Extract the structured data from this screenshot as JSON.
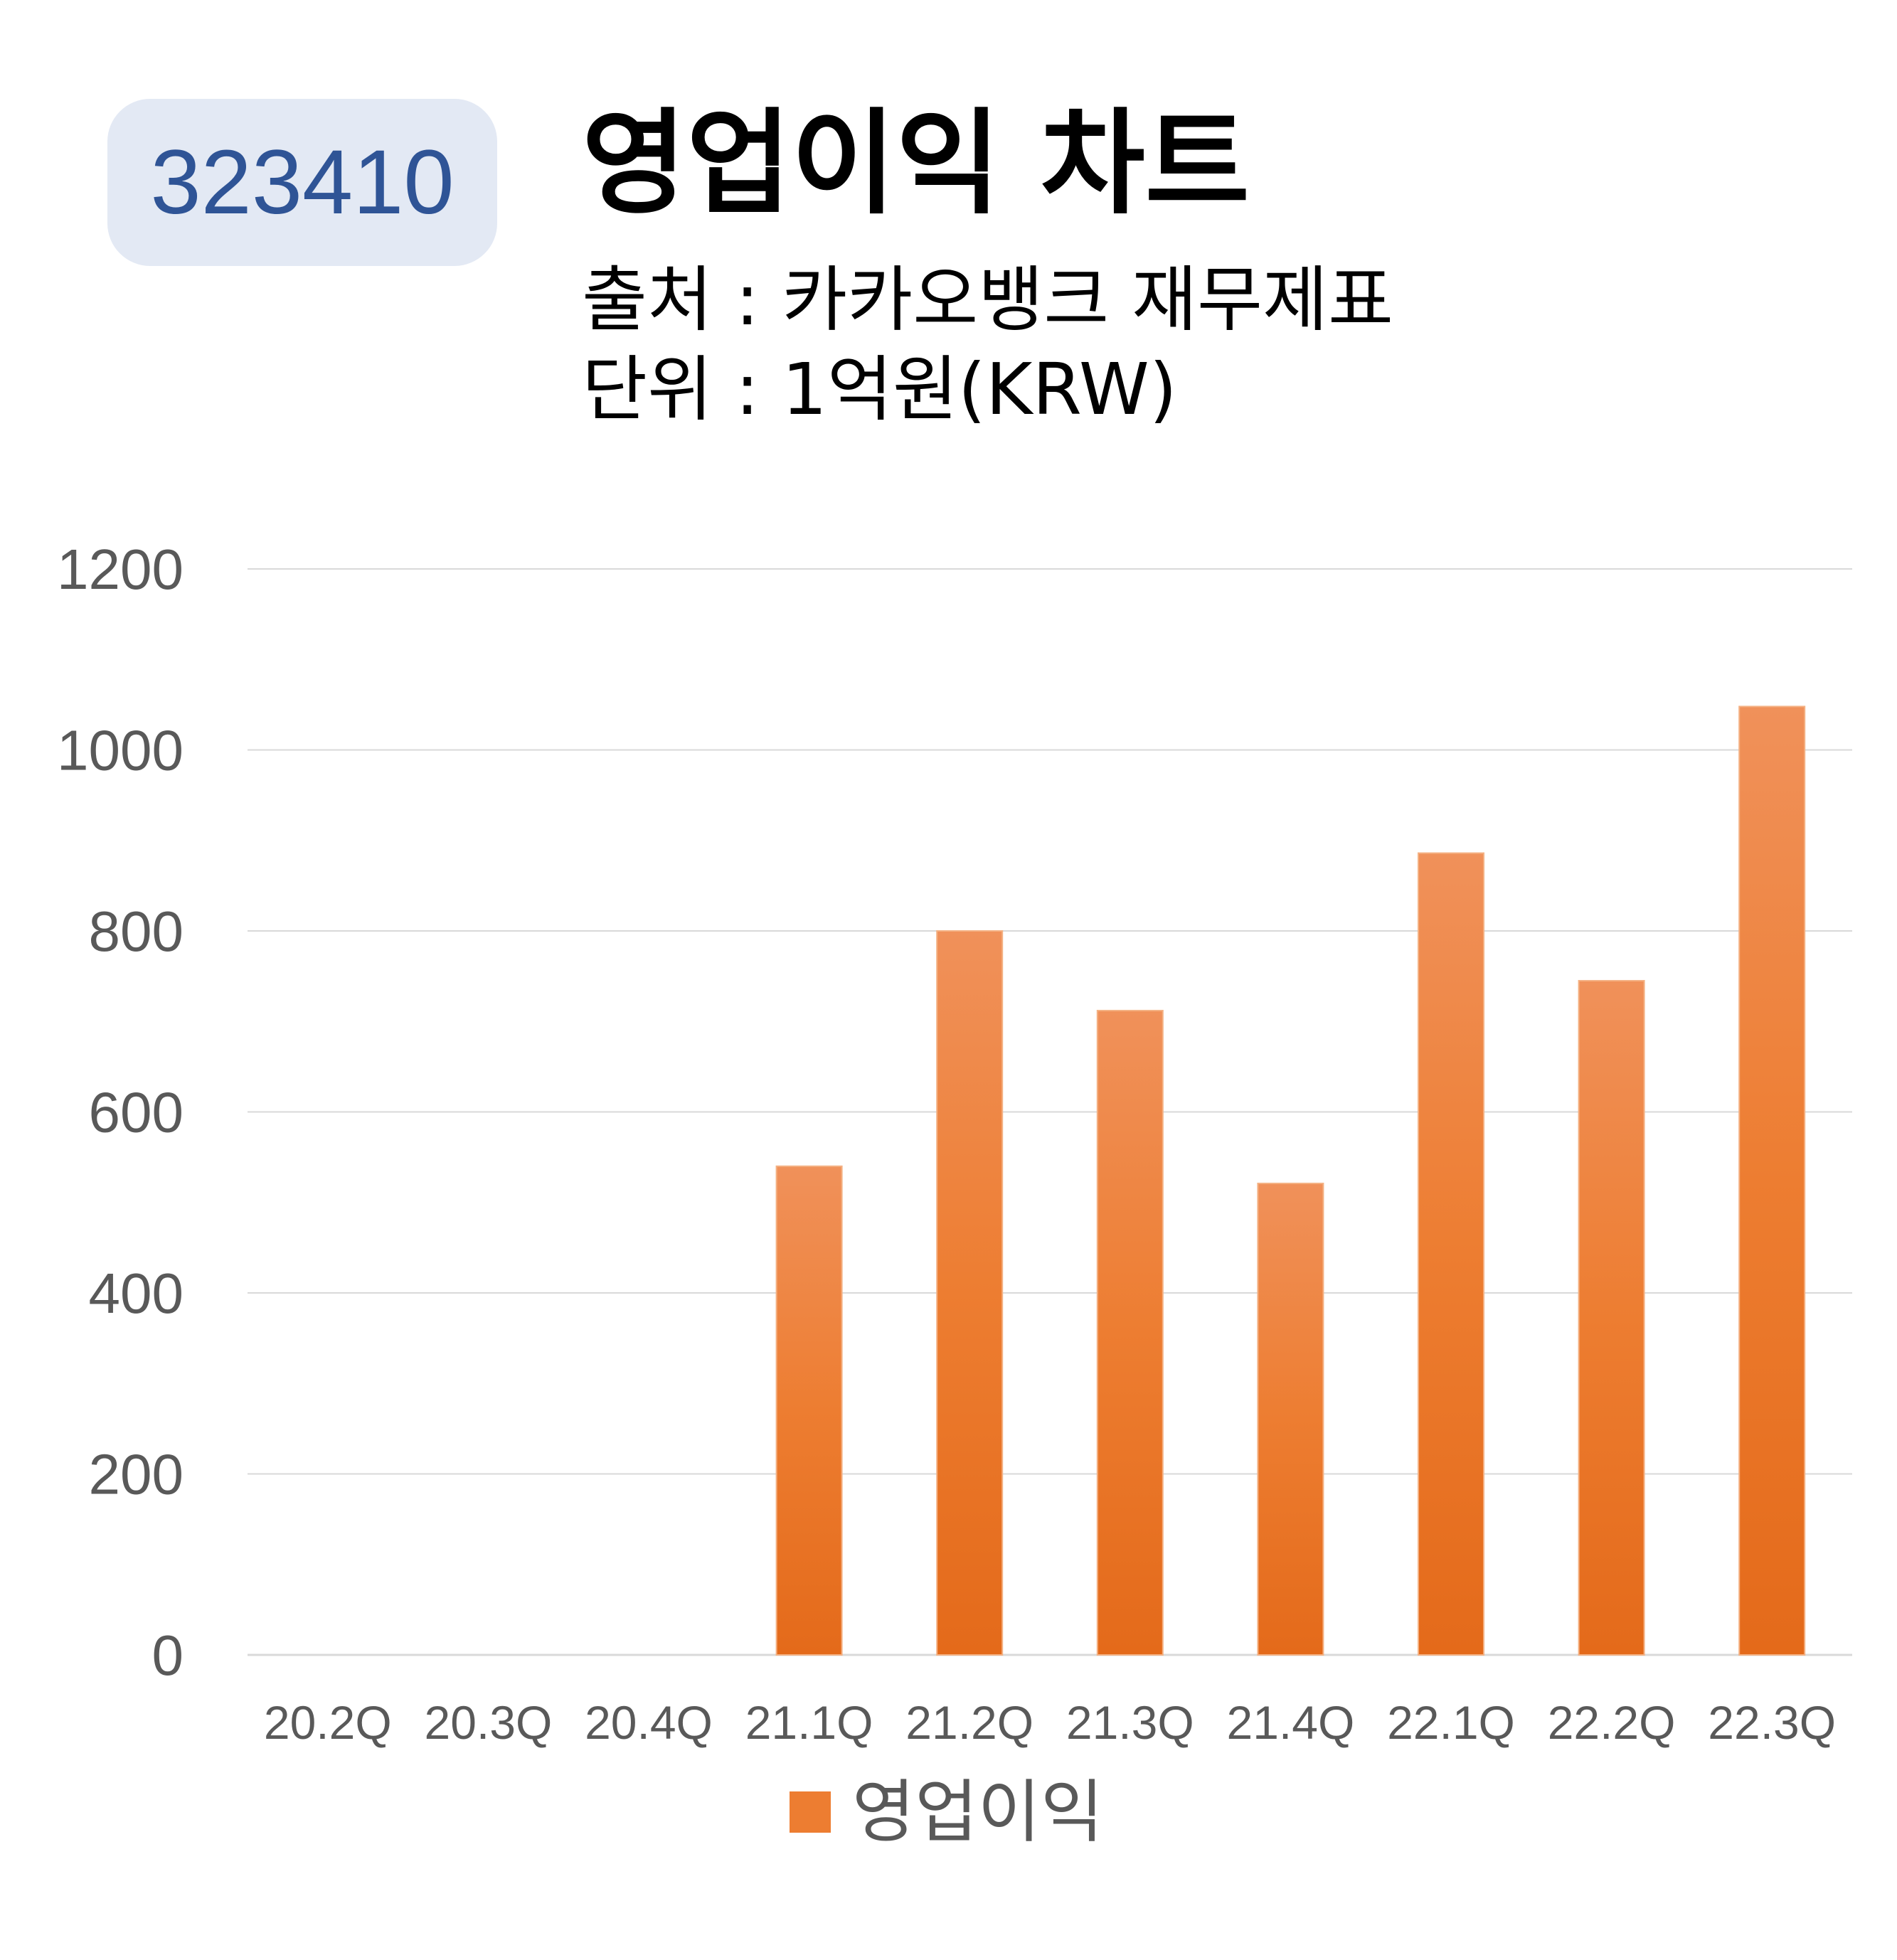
{
  "header": {
    "code": "323410",
    "title": "영업이익 차트",
    "source": "출처 : 카카오뱅크 재무제표",
    "unit": "단위 : 1억원(KRW)"
  },
  "chart_data": {
    "type": "bar",
    "categories": [
      "20.2Q",
      "20.3Q",
      "20.4Q",
      "21.1Q",
      "21.2Q",
      "21.3Q",
      "21.4Q",
      "22.1Q",
      "22.2Q",
      "22.3Q"
    ],
    "series": [
      {
        "name": "영업이익",
        "values": [
          null,
          null,
          null,
          540,
          800,
          712,
          521,
          886,
          745,
          1048
        ]
      }
    ],
    "yticks": [
      "0",
      "200",
      "400",
      "600",
      "800",
      "1000",
      "1200"
    ],
    "ylim": [
      0,
      1200
    ],
    "grid": true,
    "legend_position": "bottom",
    "colors": {
      "bar": "#ed7d31",
      "bar_top": "#f0915a",
      "bar_bottom": "#e46a1a",
      "grid": "#d9d9d9",
      "tick_text": "#595959"
    }
  }
}
